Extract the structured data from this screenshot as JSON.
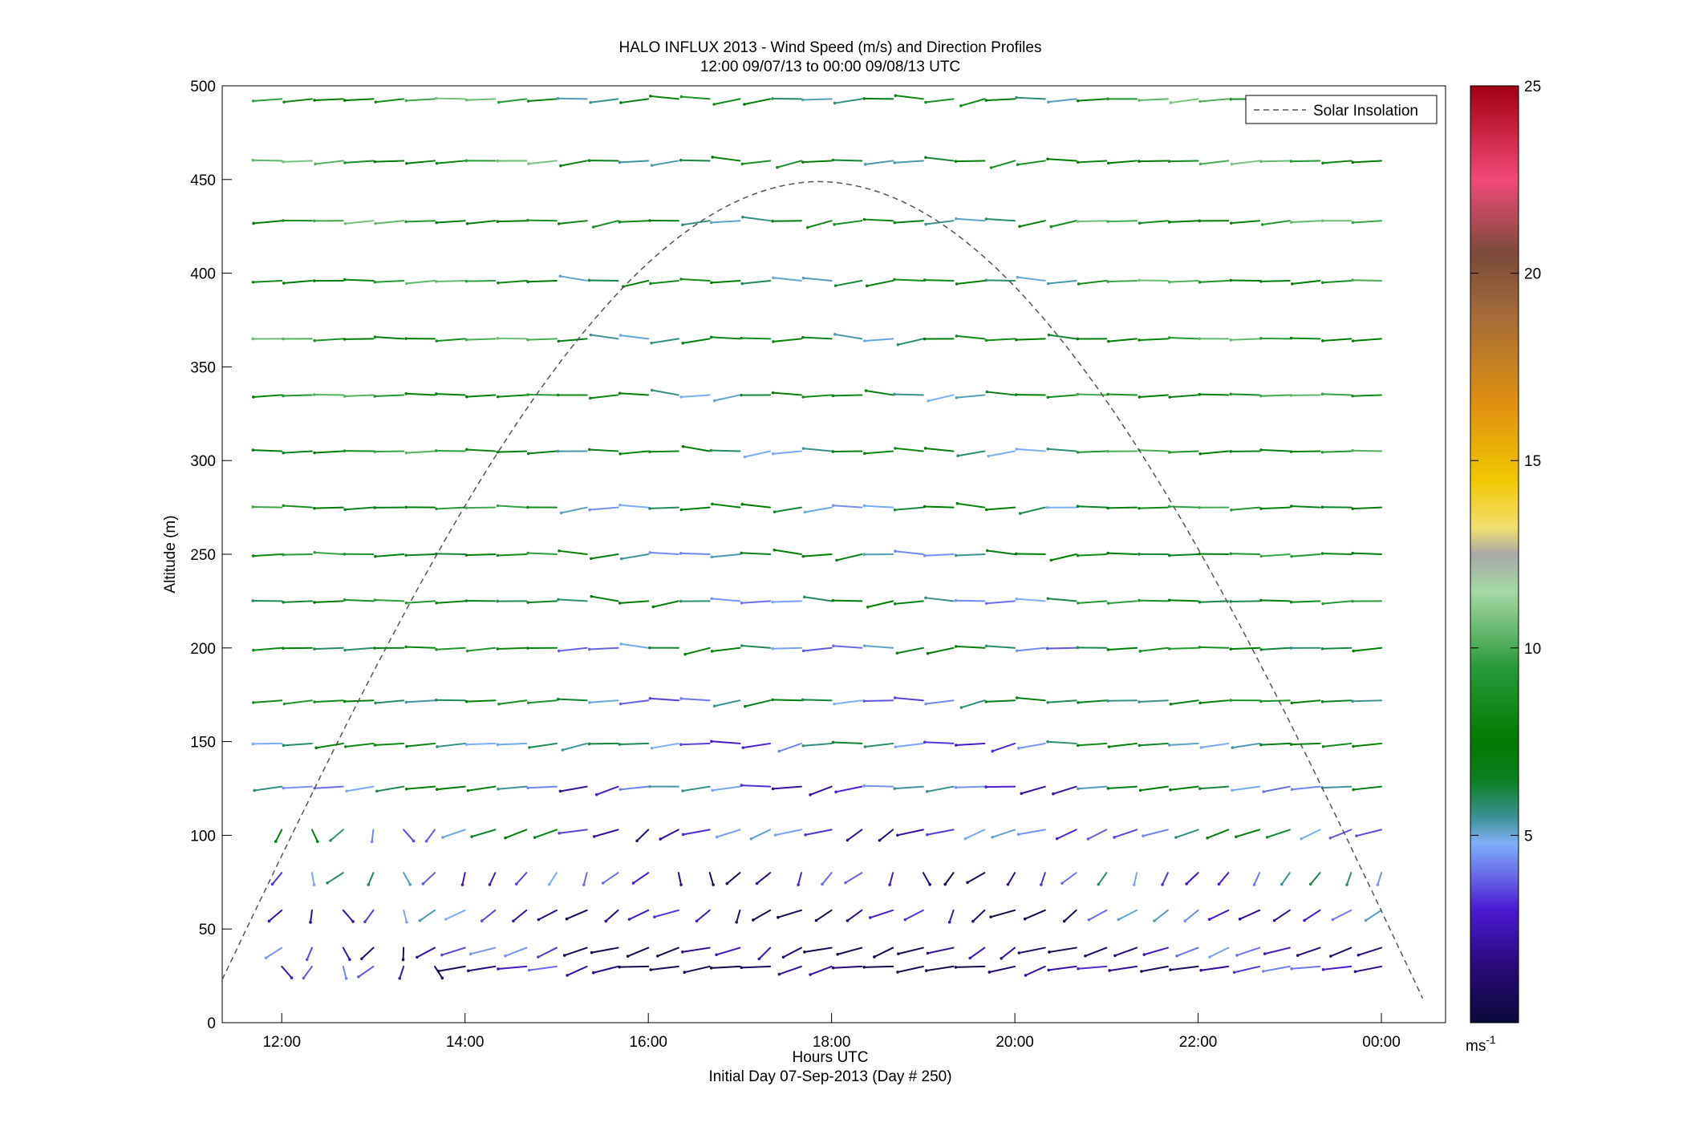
{
  "chart_data": {
    "type": "barbs",
    "title": "HALO INFLUX 2013 - Wind Speed (m/s) and Direction Profiles",
    "subtitle": "12:00 09/07/13 to 00:00 09/08/13  UTC",
    "xlabel": "Hours UTC",
    "xlabel2": "Initial Day 07-Sep-2013 (Day # 250)",
    "ylabel": "Altitude (m)",
    "xlim_hours": [
      11.35,
      24.7
    ],
    "ylim": [
      0,
      500
    ],
    "xticks": [
      {
        "value": 12,
        "label": "12:00"
      },
      {
        "value": 14,
        "label": "14:00"
      },
      {
        "value": 16,
        "label": "16:00"
      },
      {
        "value": 18,
        "label": "18:00"
      },
      {
        "value": 20,
        "label": "20:00"
      },
      {
        "value": 22,
        "label": "22:00"
      },
      {
        "value": 24,
        "label": "00:00"
      }
    ],
    "yticks": [
      0,
      50,
      100,
      150,
      200,
      250,
      300,
      350,
      400,
      450,
      500
    ],
    "legend": {
      "label": "Solar Insolation",
      "position": "top-right",
      "style": "dashed"
    },
    "colorbar": {
      "min": 0,
      "max": 25,
      "ticks": [
        5,
        10,
        15,
        20,
        25
      ],
      "unit_base": "ms",
      "unit_exp": "-1",
      "stops": [
        {
          "v": 0,
          "c": "#0a0a3a"
        },
        {
          "v": 1.5,
          "c": "#2a0a7a"
        },
        {
          "v": 3,
          "c": "#4a1ad0"
        },
        {
          "v": 4,
          "c": "#6a6ee8"
        },
        {
          "v": 4.8,
          "c": "#7fb0f8"
        },
        {
          "v": 5.5,
          "c": "#3a9090"
        },
        {
          "v": 6.5,
          "c": "#0a8020"
        },
        {
          "v": 7.5,
          "c": "#007a00"
        },
        {
          "v": 9.5,
          "c": "#2a9a3a"
        },
        {
          "v": 11.5,
          "c": "#a6d8a6"
        },
        {
          "v": 12.5,
          "c": "#a8a8a8"
        },
        {
          "v": 13.2,
          "c": "#f0e070"
        },
        {
          "v": 14.5,
          "c": "#f0c800"
        },
        {
          "v": 16.5,
          "c": "#e09010"
        },
        {
          "v": 19,
          "c": "#a06a3a"
        },
        {
          "v": 20.5,
          "c": "#7a4a3a"
        },
        {
          "v": 22.5,
          "c": "#f04a7a"
        },
        {
          "v": 25,
          "c": "#a00010"
        }
      ]
    },
    "solar_curve": {
      "start_hour": 11.35,
      "end_hour": 24.45,
      "peak_hour": 17.8,
      "peak_altitude": 449,
      "start_altitude": 23
    },
    "barbs": {
      "hours": [
        12,
        12.33,
        12.67,
        13,
        13.33,
        13.67,
        14,
        14.33,
        14.67,
        15,
        15.33,
        15.67,
        16,
        16.33,
        16.67,
        17,
        17.33,
        17.67,
        18,
        18.33,
        18.67,
        19,
        19.33,
        19.67,
        20,
        20.33,
        20.67,
        21,
        21.33,
        21.67,
        22,
        22.33,
        22.67,
        23,
        23.33,
        23.67,
        24
      ],
      "altitudes": [
        30,
        40,
        60,
        80,
        103,
        126,
        149,
        172,
        200,
        225,
        250,
        275,
        305,
        335,
        365,
        396,
        428,
        460,
        493
      ],
      "direction_deg": [
        250,
        230,
        215,
        195,
        230,
        255,
        258,
        262,
        265,
        268,
        268,
        268,
        268,
        268,
        268,
        265,
        262,
        262,
        262
      ],
      "speed_ms": [
        2.5,
        2.8,
        3.5,
        4.3,
        5.3,
        5.8,
        6.5,
        7.2,
        7.5,
        7.8,
        8,
        8.2,
        8.4,
        8.6,
        8.8,
        8.8,
        8.9,
        9,
        9
      ]
    }
  }
}
